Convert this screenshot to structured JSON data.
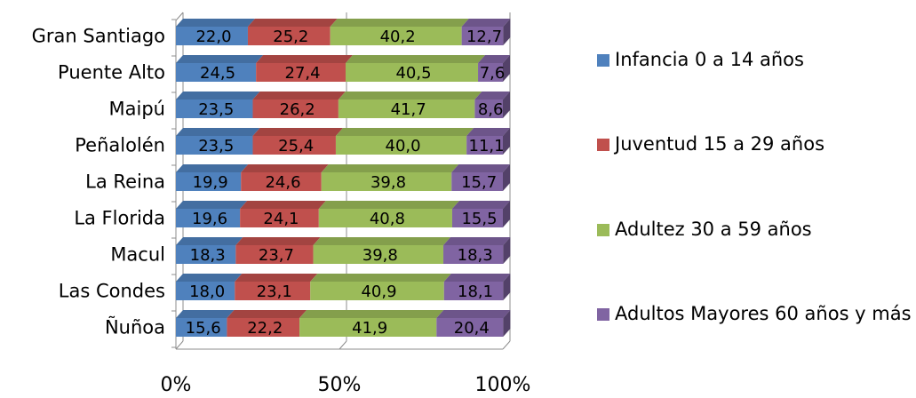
{
  "chart_data": {
    "type": "bar",
    "orientation": "horizontal",
    "stacked": "percent",
    "categories": [
      "Gran Santiago",
      "Puente Alto",
      "Maipú",
      "Peñalolén",
      "La Reina",
      "La Florida",
      "Macul",
      "Las Condes",
      "Ñuñoa"
    ],
    "series": [
      {
        "name": "Infancia 0 a 14 años",
        "color": "#4F81BD",
        "values": [
          22.0,
          24.5,
          23.5,
          23.5,
          19.9,
          19.6,
          18.3,
          18.0,
          15.6
        ],
        "labels": [
          "22,0",
          "24,5",
          "23,5",
          "23,5",
          "19,9",
          "19,6",
          "18,3",
          "18,0",
          "15,6"
        ]
      },
      {
        "name": "Juventud 15 a 29 años",
        "color": "#C0504D",
        "values": [
          25.2,
          27.4,
          26.2,
          25.4,
          24.6,
          24.1,
          23.7,
          23.1,
          22.2
        ],
        "labels": [
          "25,2",
          "27,4",
          "26,2",
          "25,4",
          "24,6",
          "24,1",
          "23,7",
          "23,1",
          "22,2"
        ]
      },
      {
        "name": "Adultez 30 a 59 años",
        "color": "#9BBB59",
        "values": [
          40.2,
          40.5,
          41.7,
          40.0,
          39.8,
          40.8,
          39.8,
          40.9,
          41.9
        ],
        "labels": [
          "40,2",
          "40,5",
          "41,7",
          "40,0",
          "39,8",
          "40,8",
          "39,8",
          "40,9",
          "41,9"
        ]
      },
      {
        "name": "Adultos Mayores 60 años y más",
        "color": "#8064A2",
        "values": [
          12.7,
          7.6,
          8.6,
          11.1,
          15.7,
          15.5,
          18.3,
          18.1,
          20.4
        ],
        "labels": [
          "12,7",
          "7,6",
          "8,6",
          "11,1",
          "15,7",
          "15,5",
          "18,3",
          "18,1",
          "20,4"
        ]
      }
    ],
    "x_ticks": [
      "0%",
      "50%",
      "100%"
    ],
    "xlim": [
      0,
      100
    ],
    "grid": true,
    "legend_position": "right",
    "style": "3d"
  }
}
